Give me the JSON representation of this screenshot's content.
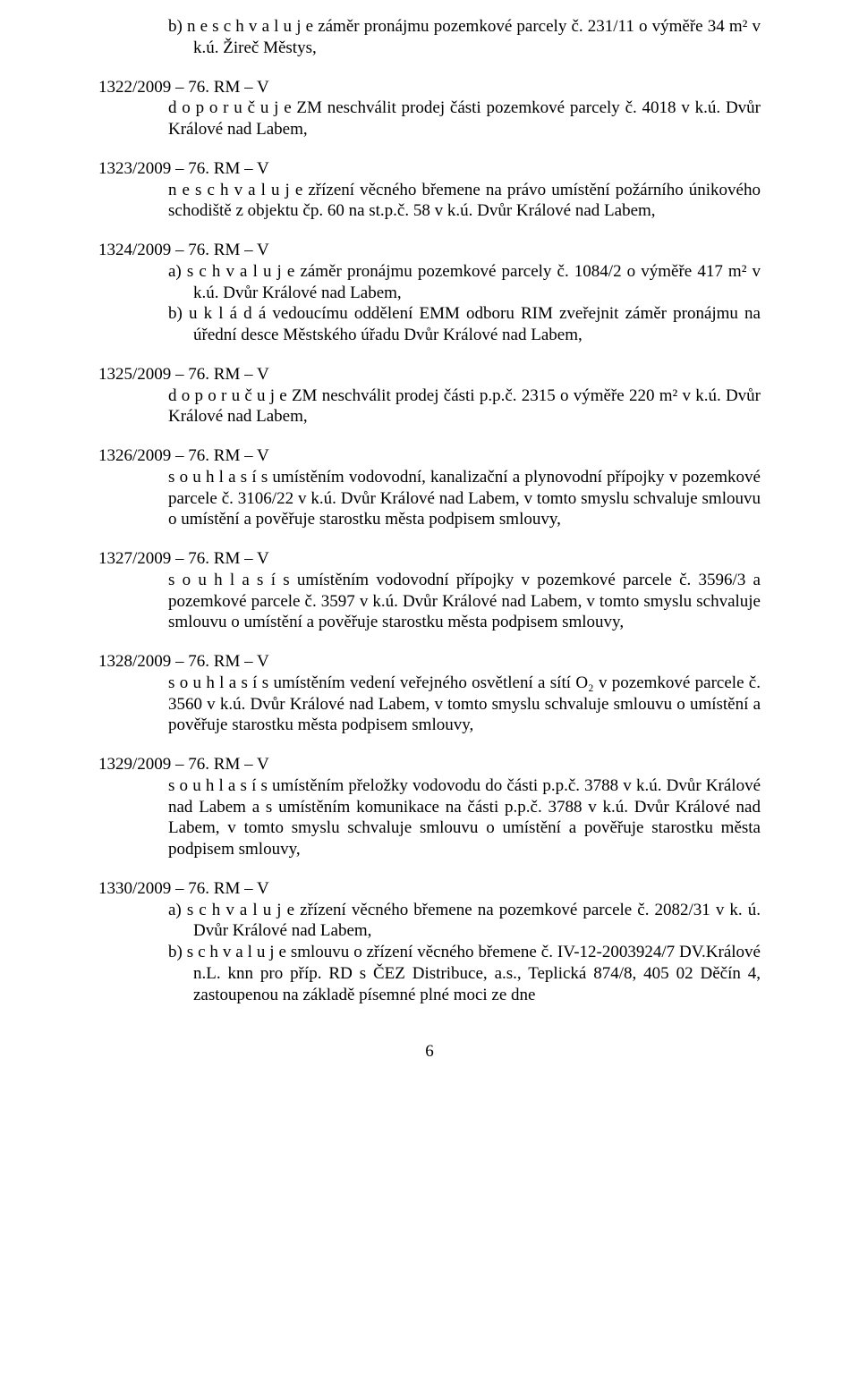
{
  "intro_b": "b) n e s c h v a l u j e  záměr  pronájmu pozemkové parcely č. 231/11 o výměře 34 m² v k.ú. Žireč Městys,",
  "r1322": {
    "head": "1322/2009 – 76. RM – V",
    "body": "d o p o r u č u j e  ZM neschválit prodej části pozemkové parcely č. 4018 v k.ú. Dvůr Králové nad Labem,"
  },
  "r1323": {
    "head": "1323/2009 – 76. RM – V",
    "body": "n e s c h v a l u j e  zřízení věcného břemene na právo umístění požárního únikového schodiště z objektu čp. 60 na st.p.č. 58 v k.ú. Dvůr Králové nad Labem,"
  },
  "r1324": {
    "head": "1324/2009 – 76. RM – V",
    "a": "a) s c h v a l u j e  záměr pronájmu pozemkové parcely č. 1084/2 o výměře 417 m² v k.ú. Dvůr Králové nad Labem,",
    "b": "b) u k l á d á  vedoucímu oddělení EMM odboru RIM zveřejnit záměr pronájmu na úřední desce Městského úřadu Dvůr Králové nad Labem,"
  },
  "r1325": {
    "head": "1325/2009 – 76. RM – V",
    "body": "d o p o r u č u j e  ZM neschválit prodej části p.p.č. 2315 o výměře 220 m² v k.ú. Dvůr Králové nad Labem,"
  },
  "r1326": {
    "head": "1326/2009 – 76. RM – V",
    "body": "s o u h l a s í  s umístěním vodovodní, kanalizační a plynovodní přípojky v pozemkové parcele č. 3106/22 v k.ú. Dvůr Králové nad Labem, v tomto smyslu schvaluje smlouvu o umístění a pověřuje starostku města podpisem smlouvy,"
  },
  "r1327": {
    "head": "1327/2009 – 76. RM – V",
    "body": "s o u h l a s í  s umístěním vodovodní přípojky v pozemkové parcele č. 3596/3 a pozemkové parcele č. 3597 v k.ú. Dvůr Králové nad Labem, v tomto smyslu schvaluje smlouvu o umístění a pověřuje starostku města podpisem smlouvy,"
  },
  "r1328": {
    "head": "1328/2009 – 76. RM – V",
    "body": "s o u h l a s í  s umístěním vedení veřejného osvětlení a sítí O₂ v pozemkové parcele č. 3560 v k.ú. Dvůr Králové nad Labem, v tomto smyslu schvaluje smlouvu o umístění  a pověřuje starostku města podpisem smlouvy,"
  },
  "r1329": {
    "head": "1329/2009 – 76. RM – V",
    "body": "s o u h l a s í  s umístěním přeložky vodovodu do části p.p.č. 3788 v k.ú. Dvůr Králové nad Labem a s umístěním komunikace na části p.p.č. 3788 v k.ú. Dvůr Králové nad Labem, v tomto smyslu schvaluje smlouvu o umístění a pověřuje starostku města podpisem smlouvy,"
  },
  "r1330": {
    "head": "1330/2009 – 76. RM – V",
    "a": "a) s c h v a l u j e  zřízení věcného břemene na pozemkové parcele č. 2082/31 v k. ú. Dvůr Králové nad Labem,",
    "b": "b) s c h v a l u j e  smlouvu o zřízení věcného břemene č. IV-12-2003924/7 DV.Králové n.L. knn pro příp. RD s ČEZ Distribuce, a.s., Teplická 874/8, 405 02 Děčín 4, zastoupenou na základě písemné plné moci ze dne"
  },
  "pagenum": "6"
}
